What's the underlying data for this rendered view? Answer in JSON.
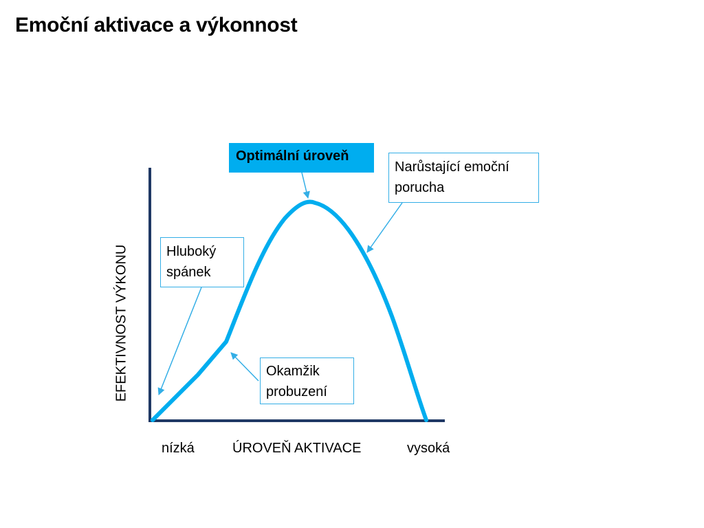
{
  "slide": {
    "title": "Emoční aktivace a výkonnost"
  },
  "diagram": {
    "y_axis_label": "EFEKTIVNOST VÝKONU",
    "x_axis_label": "ÚROVEŇ AKTIVACE",
    "x_axis_low": "nízká",
    "x_axis_high": "vysoká",
    "callouts": {
      "optimal": "Optimální úroveň",
      "disorder": [
        "Narůstající emoční",
        "porucha"
      ],
      "deep_sleep": [
        "Hluboký",
        "spánek"
      ],
      "awakening": [
        "Okamžik",
        "probuzení"
      ]
    },
    "colors": {
      "curve": "#00adef",
      "axes": "#1f3864",
      "callout_border": "#33aee6",
      "optimal_fill": "#00adef"
    }
  }
}
